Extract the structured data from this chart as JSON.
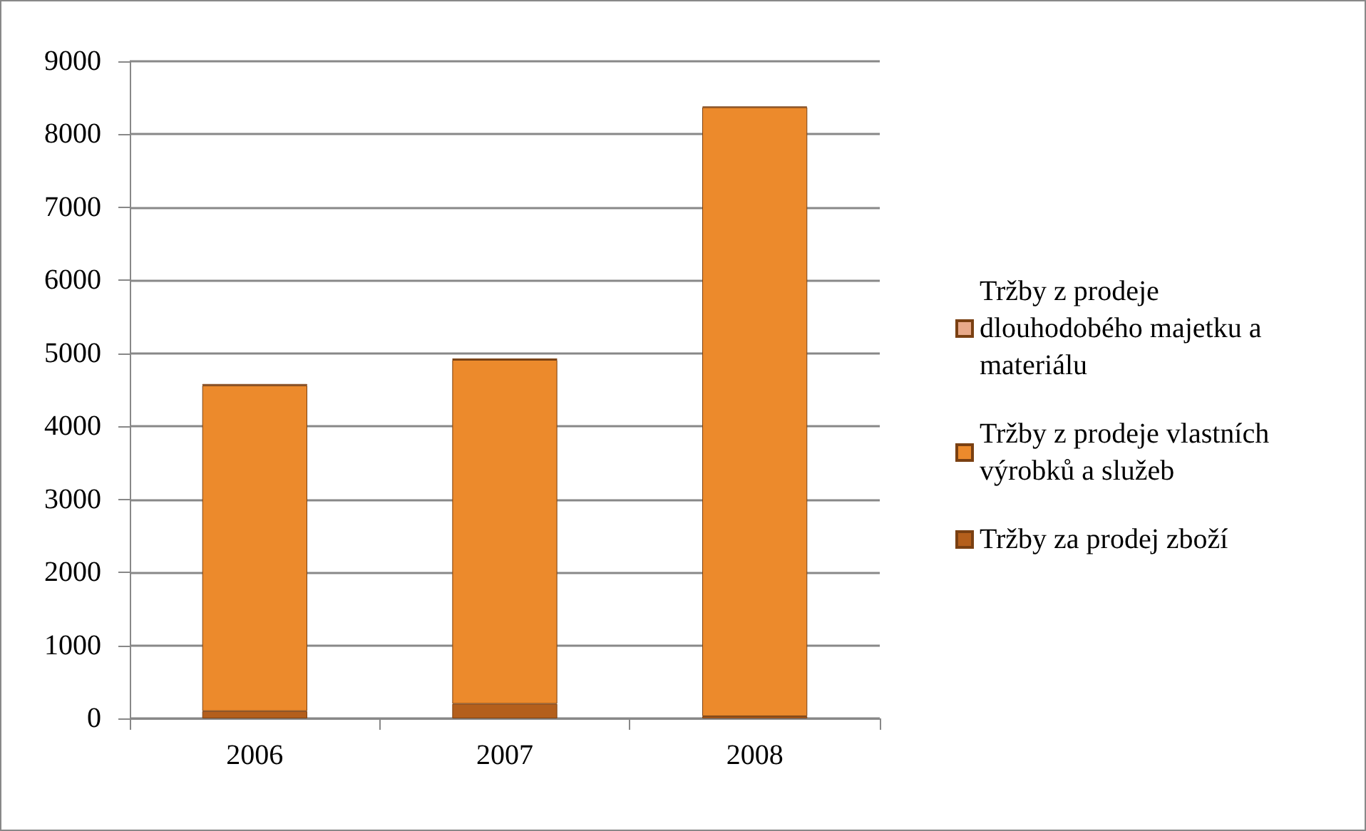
{
  "chart_data": {
    "type": "bar",
    "stacked": true,
    "categories": [
      "2006",
      "2007",
      "2008"
    ],
    "series": [
      {
        "name": "Tržby za prodej zboží",
        "color": "#b45f1c",
        "values": [
          100,
          200,
          30
        ]
      },
      {
        "name": "Tržby z prodeje vlastních výrobků a služeb",
        "color": "#ec8a2c",
        "values": [
          4460,
          4710,
          8340
        ]
      },
      {
        "name": "Tržby z prodeje dlouhodobého majetku a materiálu",
        "color": "#e8a98a",
        "values": [
          20,
          20,
          10
        ]
      }
    ],
    "ylim": [
      0,
      9000
    ],
    "yticks": [
      0,
      1000,
      2000,
      3000,
      4000,
      5000,
      6000,
      7000,
      8000,
      9000
    ],
    "grid": "y",
    "legend": "right"
  }
}
